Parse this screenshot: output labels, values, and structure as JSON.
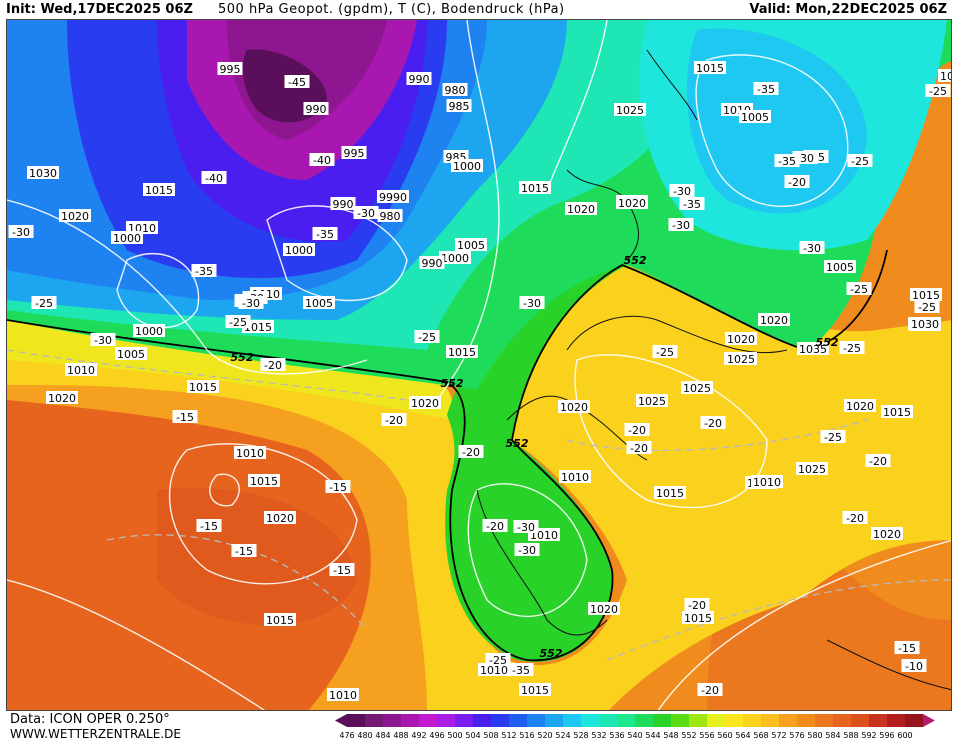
{
  "header": {
    "init": "Init: Wed,17DEC2025 06Z",
    "title": "500 hPa Geopot. (gpdm), T (C), Bodendruck (hPa)",
    "valid": "Valid: Mon,22DEC2025 06Z"
  },
  "footer": {
    "source": "Data: ICON OPER 0.250°",
    "website": "WWW.WETTERZENTRALE.DE"
  },
  "legend": {
    "ticks": [
      "476",
      "480",
      "484",
      "488",
      "492",
      "496",
      "500",
      "504",
      "508",
      "512",
      "516",
      "520",
      "524",
      "528",
      "532",
      "536",
      "540",
      "544",
      "548",
      "552",
      "556",
      "560",
      "564",
      "568",
      "572",
      "576",
      "580",
      "584",
      "588",
      "592",
      "596",
      "600"
    ],
    "colors": [
      "#5a0f5a",
      "#741a74",
      "#8e1690",
      "#a817b0",
      "#c21ad0",
      "#a81ee6",
      "#7a1ef0",
      "#4b1ef0",
      "#2a3cf0",
      "#1e5ff0",
      "#1e82f0",
      "#1ea5f0",
      "#1ec8f0",
      "#1ee6dc",
      "#1ee6b4",
      "#1ee68c",
      "#1edc5a",
      "#28d228",
      "#5adc14",
      "#a0e614",
      "#e6f01e",
      "#fae61e",
      "#fad21e",
      "#fabe1e",
      "#f5a01e",
      "#f08c1e",
      "#eb781e",
      "#e6641e",
      "#dc501e",
      "#c8321e",
      "#b41e1e",
      "#96141e"
    ]
  },
  "map": {
    "geopotential_contour": "552",
    "pressure_labels": [
      "995",
      "990",
      "980",
      "985",
      "990",
      "995",
      "985",
      "1000",
      "9990",
      "990",
      "980",
      "1000",
      "1005",
      "1000",
      "990",
      "1015",
      "1020",
      "1025",
      "1015",
      "1010",
      "1005",
      "1030",
      "1015",
      "1020",
      "1010",
      "1000",
      "1010",
      "1005",
      "1015",
      "1000",
      "1005",
      "1010",
      "1015",
      "1020",
      "1015",
      "1020",
      "1020",
      "1025",
      "1025",
      "1020",
      "1010",
      "1015",
      "1010",
      "1010",
      "1015",
      "1020",
      "1025",
      "1020",
      "1015",
      "1025",
      "1015",
      "1020",
      "1020",
      "1015",
      "1020",
      "1015",
      "1010",
      "1010",
      "1015",
      "1025",
      "1020",
      "1035",
      "1020",
      "1015",
      "1010",
      "1005",
      "1025",
      "1015",
      "1030",
      "1030"
    ],
    "temperature_labels": [
      "-45",
      "-40",
      "-40",
      "-35",
      "-30",
      "-30",
      "-30",
      "-25",
      "-35",
      "-30",
      "-30",
      "-25",
      "-30",
      "-25",
      "-20",
      "-15",
      "-20",
      "-20",
      "-15",
      "-15",
      "-15",
      "-15",
      "-20",
      "-25",
      "-30",
      "-25",
      "-20",
      "-25",
      "-25",
      "-25",
      "-35",
      "-30",
      "-35",
      "-30",
      "-25",
      "-30",
      "-25",
      "-25",
      "-20",
      "-20",
      "-20",
      "-20",
      "-20",
      "-15",
      "-10",
      "-20",
      "-30",
      "-35",
      "-25",
      "-30",
      "-30",
      "-35",
      "-20"
    ],
    "labels_552": [
      "552",
      "552",
      "552",
      "552",
      "552",
      "552"
    ]
  }
}
